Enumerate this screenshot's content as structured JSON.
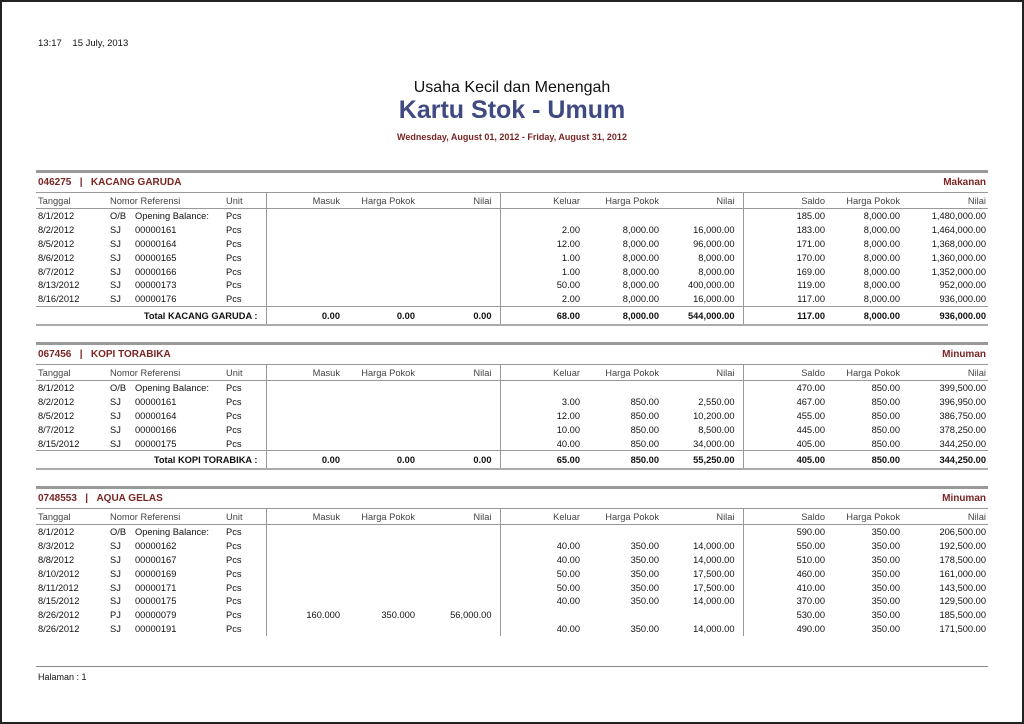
{
  "header": {
    "time": "13:17",
    "date": "15 July, 2013"
  },
  "organization": "Usaha Kecil dan Menengah",
  "report_title": "Kartu Stok - Umum",
  "period": "Wednesday, August 01, 2012 - Friday, August 31, 2012",
  "colors": {
    "title": "#3f4a82",
    "accent": "#7a2525"
  },
  "columns": [
    "Tanggal",
    "Nomor Referensi",
    "",
    "Unit",
    "Masuk",
    "Harga Pokok",
    "Nilai",
    "Keluar",
    "Harga Pokok",
    "Nilai",
    "Saldo",
    "Harga Pokok",
    "Nilai"
  ],
  "sections": [
    {
      "code": "046275",
      "separator": "|",
      "name": "KACANG GARUDA",
      "category": "Makanan",
      "rows": [
        [
          "8/1/2012",
          "O/B",
          "Opening Balance:",
          "Pcs",
          "",
          "",
          "",
          "",
          "",
          "",
          "185.00",
          "8,000.00",
          "1,480,000.00"
        ],
        [
          "8/2/2012",
          "SJ",
          "00000161",
          "Pcs",
          "",
          "",
          "",
          "2.00",
          "8,000.00",
          "16,000.00",
          "183.00",
          "8,000.00",
          "1,464,000.00"
        ],
        [
          "8/5/2012",
          "SJ",
          "00000164",
          "Pcs",
          "",
          "",
          "",
          "12.00",
          "8,000.00",
          "96,000.00",
          "171.00",
          "8,000.00",
          "1,368,000.00"
        ],
        [
          "8/6/2012",
          "SJ",
          "00000165",
          "Pcs",
          "",
          "",
          "",
          "1.00",
          "8,000.00",
          "8,000.00",
          "170.00",
          "8,000.00",
          "1,360,000.00"
        ],
        [
          "8/7/2012",
          "SJ",
          "00000166",
          "Pcs",
          "",
          "",
          "",
          "1.00",
          "8,000.00",
          "8,000.00",
          "169.00",
          "8,000.00",
          "1,352,000.00"
        ],
        [
          "8/13/2012",
          "SJ",
          "00000173",
          "Pcs",
          "",
          "",
          "",
          "50.00",
          "8,000.00",
          "400,000.00",
          "119.00",
          "8,000.00",
          "952,000.00"
        ],
        [
          "8/16/2012",
          "SJ",
          "00000176",
          "Pcs",
          "",
          "",
          "",
          "2.00",
          "8,000.00",
          "16,000.00",
          "117.00",
          "8,000.00",
          "936,000.00"
        ]
      ],
      "total": {
        "label": "Total KACANG GARUDA  :",
        "values": [
          "0.00",
          "0.00",
          "0.00",
          "68.00",
          "8,000.00",
          "544,000.00",
          "117.00",
          "8,000.00",
          "936,000.00"
        ]
      }
    },
    {
      "code": "067456",
      "separator": "|",
      "name": "KOPI TORABIKA",
      "category": "Minuman",
      "rows": [
        [
          "8/1/2012",
          "O/B",
          "Opening Balance:",
          "Pcs",
          "",
          "",
          "",
          "",
          "",
          "",
          "470.00",
          "850.00",
          "399,500.00"
        ],
        [
          "8/2/2012",
          "SJ",
          "00000161",
          "Pcs",
          "",
          "",
          "",
          "3.00",
          "850.00",
          "2,550.00",
          "467.00",
          "850.00",
          "396,950.00"
        ],
        [
          "8/5/2012",
          "SJ",
          "00000164",
          "Pcs",
          "",
          "",
          "",
          "12.00",
          "850.00",
          "10,200.00",
          "455.00",
          "850.00",
          "386,750.00"
        ],
        [
          "8/7/2012",
          "SJ",
          "00000166",
          "Pcs",
          "",
          "",
          "",
          "10.00",
          "850.00",
          "8,500.00",
          "445.00",
          "850.00",
          "378,250.00"
        ],
        [
          "8/15/2012",
          "SJ",
          "00000175",
          "Pcs",
          "",
          "",
          "",
          "40.00",
          "850.00",
          "34,000.00",
          "405.00",
          "850.00",
          "344,250.00"
        ]
      ],
      "total": {
        "label": "Total KOPI TORABIKA  :",
        "values": [
          "0.00",
          "0.00",
          "0.00",
          "65.00",
          "850.00",
          "55,250.00",
          "405.00",
          "850.00",
          "344,250.00"
        ]
      }
    },
    {
      "code": "0748553",
      "separator": "|",
      "name": "AQUA GELAS",
      "category": "Minuman",
      "rows": [
        [
          "8/1/2012",
          "O/B",
          "Opening Balance:",
          "Pcs",
          "",
          "",
          "",
          "",
          "",
          "",
          "590.00",
          "350.00",
          "206,500.00"
        ],
        [
          "8/3/2012",
          "SJ",
          "00000162",
          "Pcs",
          "",
          "",
          "",
          "40.00",
          "350.00",
          "14,000.00",
          "550.00",
          "350.00",
          "192,500.00"
        ],
        [
          "8/8/2012",
          "SJ",
          "00000167",
          "Pcs",
          "",
          "",
          "",
          "40.00",
          "350.00",
          "14,000.00",
          "510.00",
          "350.00",
          "178,500.00"
        ],
        [
          "8/10/2012",
          "SJ",
          "00000169",
          "Pcs",
          "",
          "",
          "",
          "50.00",
          "350.00",
          "17,500.00",
          "460.00",
          "350.00",
          "161,000.00"
        ],
        [
          "8/11/2012",
          "SJ",
          "00000171",
          "Pcs",
          "",
          "",
          "",
          "50.00",
          "350.00",
          "17,500.00",
          "410.00",
          "350.00",
          "143,500.00"
        ],
        [
          "8/15/2012",
          "SJ",
          "00000175",
          "Pcs",
          "",
          "",
          "",
          "40.00",
          "350.00",
          "14,000.00",
          "370.00",
          "350.00",
          "129,500.00"
        ],
        [
          "8/26/2012",
          "PJ",
          "00000079",
          "Pcs",
          "160.000",
          "350.000",
          "56,000.00",
          "",
          "",
          "",
          "530.00",
          "350.00",
          "185,500.00"
        ],
        [
          "8/26/2012",
          "SJ",
          "00000191",
          "Pcs",
          "",
          "",
          "",
          "40.00",
          "350.00",
          "14,000.00",
          "490.00",
          "350.00",
          "171,500.00"
        ]
      ]
    }
  ],
  "footer": {
    "page_label": "Halaman : 1"
  }
}
